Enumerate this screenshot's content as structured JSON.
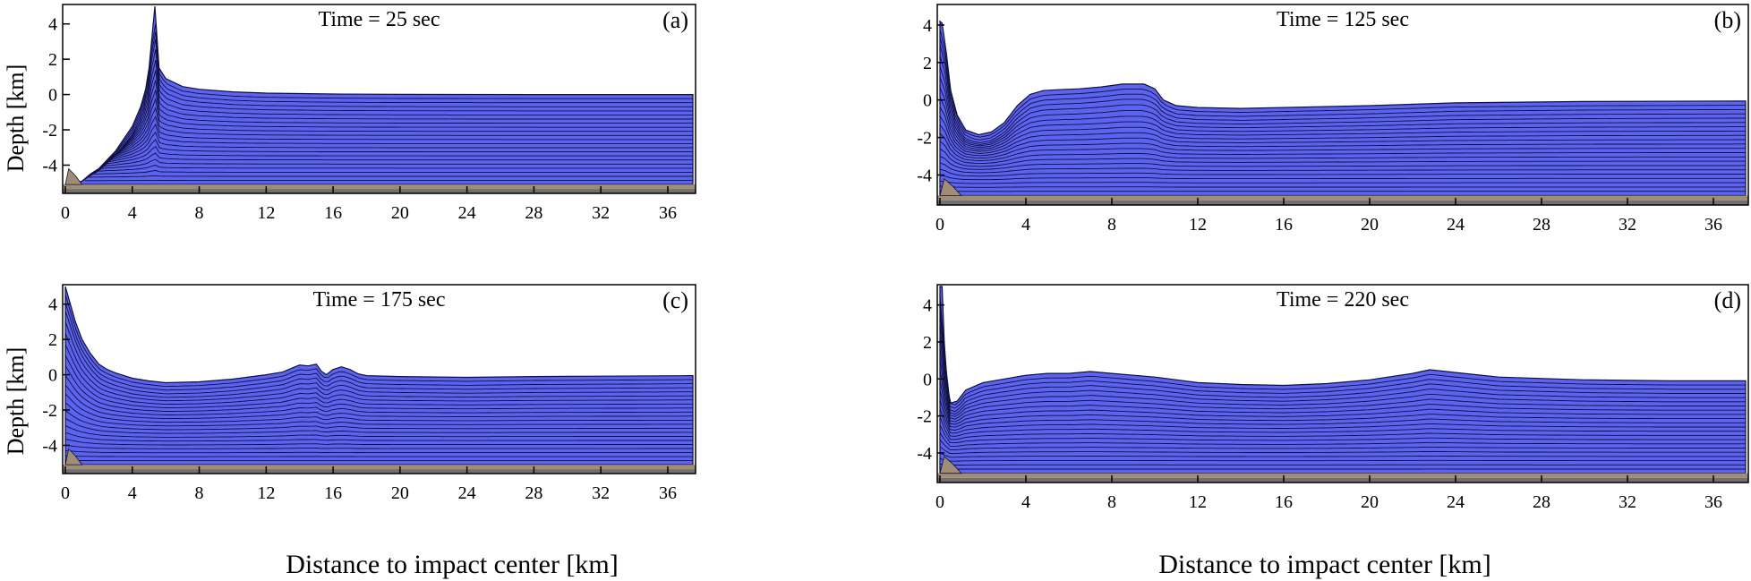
{
  "figure": {
    "ylabel_top": "Depth [km]",
    "ylabel_bottom": "Depth [km]",
    "xlabel_left": "Distance to impact center [km]",
    "xlabel_right": "Distance to impact center [km]"
  },
  "colors": {
    "water": "#5c63ee",
    "layer_line": "#101040",
    "sediment": "#9f8e74",
    "basement": "#707070",
    "frame": "#000000",
    "background": "#ffffff"
  },
  "chart_data": [
    {
      "type": "area",
      "panel_label": "(a)",
      "title": "Time =  25 sec",
      "xlim": [
        0,
        37.5
      ],
      "ylim": [
        -5.6,
        5
      ],
      "xticks": [
        0,
        4,
        8,
        12,
        16,
        20,
        24,
        28,
        32,
        36
      ],
      "yticks": [
        4,
        2,
        0,
        -2,
        -4
      ],
      "series": [
        {
          "x": [
            0,
            0.5,
            1,
            1.5,
            2,
            2.5,
            3,
            3.5,
            4,
            4.5,
            4.8,
            5.0,
            5.2,
            5.35,
            5.6,
            6,
            7,
            8,
            10,
            12,
            16,
            20,
            28,
            37.5
          ],
          "values": [
            -5.3,
            -5.1,
            -4.9,
            -4.5,
            -4.2,
            -3.7,
            -3.2,
            -2.5,
            -1.8,
            -0.7,
            0.3,
            1.5,
            3.5,
            5.0,
            1.5,
            0.9,
            0.45,
            0.3,
            0.15,
            0.08,
            0.03,
            0.01,
            0,
            0
          ]
        }
      ]
    },
    {
      "type": "area",
      "panel_label": "(b)",
      "title": "Time = 125 sec",
      "xlim": [
        0,
        37.5
      ],
      "ylim": [
        -5.6,
        5
      ],
      "xticks": [
        0,
        4,
        8,
        12,
        16,
        20,
        24,
        28,
        32,
        36
      ],
      "yticks": [
        4,
        2,
        0,
        -2,
        -4
      ],
      "series": [
        {
          "x": [
            0,
            0.1,
            0.3,
            0.5,
            0.8,
            1.2,
            1.8,
            2.4,
            3,
            3.6,
            4.2,
            4.8,
            5.5,
            6.5,
            7.5,
            8.5,
            9.5,
            10.0,
            10.4,
            11,
            12,
            14,
            16,
            20,
            24,
            30,
            37.5
          ],
          "values": [
            4.2,
            4.1,
            2.5,
            0.5,
            -0.8,
            -1.6,
            -1.85,
            -1.7,
            -1.2,
            -0.3,
            0.3,
            0.5,
            0.55,
            0.6,
            0.7,
            0.85,
            0.85,
            0.6,
            0.0,
            -0.3,
            -0.4,
            -0.45,
            -0.4,
            -0.3,
            -0.15,
            -0.08,
            -0.05
          ]
        }
      ]
    },
    {
      "type": "area",
      "panel_label": "(c)",
      "title": "Time = 175 sec",
      "xlim": [
        0,
        37.5
      ],
      "ylim": [
        -5.6,
        5
      ],
      "xticks": [
        0,
        4,
        8,
        12,
        16,
        20,
        24,
        28,
        32,
        36
      ],
      "yticks": [
        4,
        2,
        0,
        -2,
        -4
      ],
      "series": [
        {
          "x": [
            0,
            0.3,
            0.6,
            1,
            1.5,
            2,
            2.5,
            3,
            4,
            5,
            6,
            8,
            10,
            12,
            13,
            13.6,
            14,
            14.5,
            15,
            15.3,
            15.6,
            16,
            16.5,
            17,
            17.5,
            18,
            20,
            24,
            28,
            32,
            37.5
          ],
          "values": [
            5.0,
            4.0,
            3.0,
            2.0,
            1.2,
            0.6,
            0.3,
            0.1,
            -0.2,
            -0.35,
            -0.45,
            -0.4,
            -0.25,
            0.0,
            0.15,
            0.4,
            0.55,
            0.5,
            0.6,
            0.2,
            0.0,
            0.3,
            0.45,
            0.3,
            0.05,
            -0.05,
            -0.1,
            -0.15,
            -0.1,
            -0.08,
            -0.05
          ]
        }
      ]
    },
    {
      "type": "area",
      "panel_label": "(d)",
      "title": "Time = 220 sec",
      "xlim": [
        0,
        37.5
      ],
      "ylim": [
        -5.6,
        5
      ],
      "xticks": [
        0,
        4,
        8,
        12,
        16,
        20,
        24,
        28,
        32,
        36
      ],
      "yticks": [
        4,
        2,
        0,
        -2,
        -4
      ],
      "series": [
        {
          "x": [
            0,
            0.1,
            0.2,
            0.35,
            0.5,
            0.8,
            1.2,
            2,
            3,
            4,
            5,
            6,
            7,
            8,
            10,
            12,
            14,
            16,
            18,
            20,
            22,
            22.8,
            24,
            26,
            30,
            34,
            37.5
          ],
          "values": [
            5.0,
            5.0,
            2.0,
            -0.5,
            -1.3,
            -1.2,
            -0.6,
            -0.2,
            0.0,
            0.2,
            0.3,
            0.3,
            0.4,
            0.3,
            0.1,
            -0.2,
            -0.3,
            -0.35,
            -0.25,
            -0.05,
            0.3,
            0.5,
            0.35,
            0.1,
            -0.05,
            -0.1,
            -0.1
          ]
        }
      ]
    }
  ]
}
